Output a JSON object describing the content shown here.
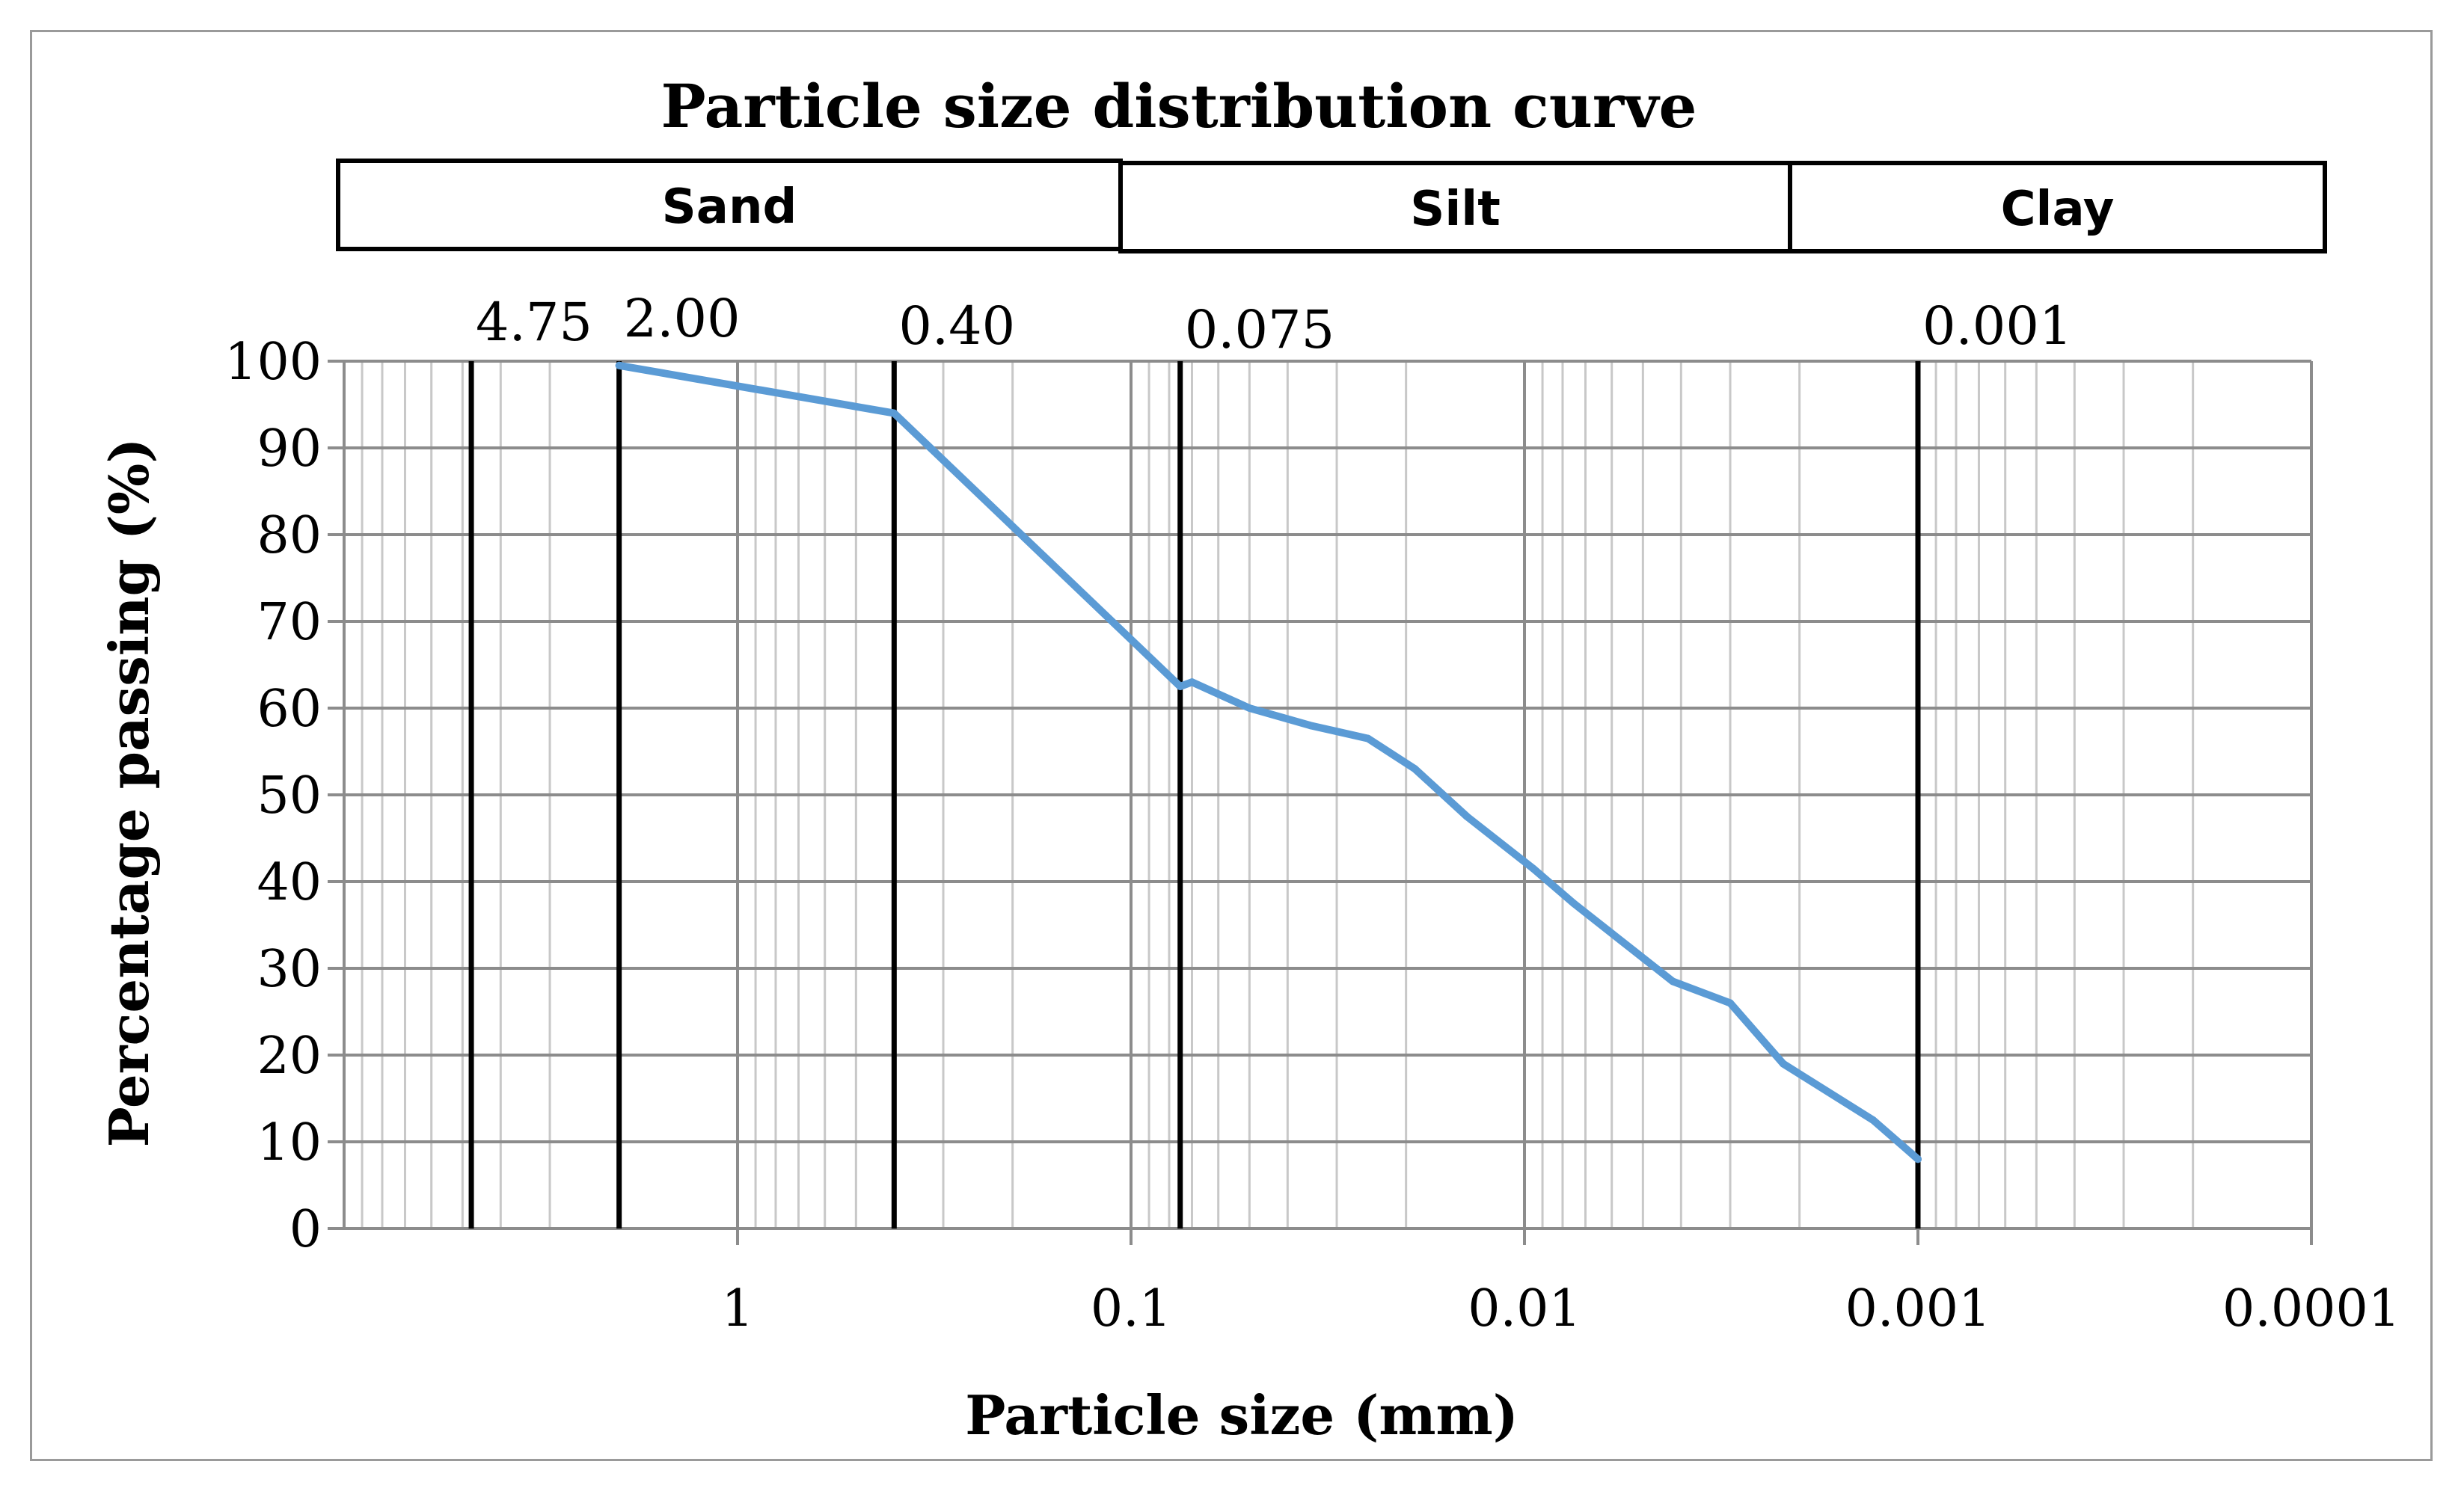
{
  "chart_data": {
    "type": "line",
    "title": "Particle size distribution curve",
    "xlabel": "Particle size (mm)",
    "ylabel": "Percentage passing (%)",
    "x_scale": "log",
    "x_reversed": true,
    "xlim": [
      10,
      0.0001
    ],
    "ylim": [
      0,
      100
    ],
    "x_ticks": [
      {
        "value": 1,
        "label": "1"
      },
      {
        "value": 0.1,
        "label": "0.1"
      },
      {
        "value": 0.01,
        "label": "0.01"
      },
      {
        "value": 0.001,
        "label": "0.001"
      },
      {
        "value": 0.0001,
        "label": "0.0001"
      }
    ],
    "y_ticks": [
      0,
      10,
      20,
      30,
      40,
      50,
      60,
      70,
      80,
      90,
      100
    ],
    "grid": true,
    "boundaries": [
      {
        "value": 4.75,
        "label": "4.75"
      },
      {
        "value": 2.0,
        "label": "2.00"
      },
      {
        "value": 0.4,
        "label": "0.40"
      },
      {
        "value": 0.075,
        "label": "0.075"
      },
      {
        "value": 0.001,
        "label": "0.001"
      }
    ],
    "zones": [
      {
        "label": "Sand",
        "from": 10,
        "to": 0.075
      },
      {
        "label": "Silt",
        "from": 0.075,
        "to": 0.0023
      },
      {
        "label": "Clay",
        "from": 0.0023,
        "to": 0.0001
      }
    ],
    "series": [
      {
        "name": "Particle size distribution",
        "color": "#5b9bd5",
        "x": [
          2.0,
          0.4,
          0.075,
          0.07,
          0.05,
          0.035,
          0.025,
          0.019,
          0.014,
          0.0095,
          0.0075,
          0.0042,
          0.003,
          0.0022,
          0.0013,
          0.001
        ],
        "y": [
          99.5,
          94,
          62.5,
          63,
          60,
          58,
          56.5,
          53,
          47.5,
          41.5,
          37.5,
          28.5,
          26,
          19,
          12.5,
          8
        ]
      }
    ]
  }
}
